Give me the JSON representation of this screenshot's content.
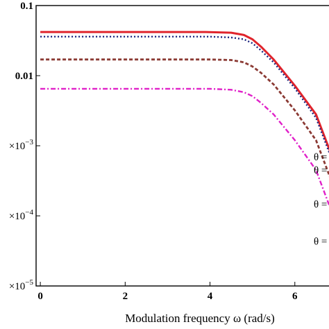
{
  "chart_data": {
    "type": "line",
    "title": "",
    "xlabel": "Modulation frequency ω (rad/s)",
    "ylabel": "",
    "xlim": [
      -0.1,
      7.1
    ],
    "ylim_log10": [
      -5,
      -1
    ],
    "y_scale": "log",
    "grid": false,
    "x_ticks": [
      0,
      2,
      4,
      6
    ],
    "x_tick_labels": [
      "0",
      "2",
      "4",
      "6"
    ],
    "y_ticks": [
      {
        "value": 0.1,
        "label": "0.1"
      },
      {
        "value": 0.01,
        "label": "0.01"
      },
      {
        "value": 0.001,
        "label": "×10",
        "exp": "−3"
      },
      {
        "value": 0.0001,
        "label": "×10",
        "exp": "−4"
      },
      {
        "value": 1e-05,
        "label": "×10",
        "exp": "−5"
      }
    ],
    "series": [
      {
        "label": "θ =",
        "color": "#e0242c",
        "style": "solid",
        "x": [
          0,
          1,
          2,
          3,
          3.9,
          4.5,
          4.8,
          5.0,
          5.2,
          5.5,
          6.0,
          6.5,
          7.0
        ],
        "y": [
          0.042,
          0.042,
          0.042,
          0.042,
          0.042,
          0.041,
          0.038,
          0.033,
          0.026,
          0.017,
          0.0072,
          0.0028,
          0.00045
        ]
      },
      {
        "label": "θ =",
        "color": "#1a237e",
        "style": "dotted",
        "x": [
          0,
          1,
          2,
          3,
          4,
          4.5,
          4.8,
          5.0,
          5.2,
          5.5,
          6.0,
          6.5,
          7.0
        ],
        "y": [
          0.036,
          0.036,
          0.036,
          0.036,
          0.036,
          0.035,
          0.033,
          0.029,
          0.023,
          0.0155,
          0.0066,
          0.0025,
          0.0004
        ]
      },
      {
        "label": "θ =",
        "color": "#8b3a34",
        "style": "dashed",
        "x": [
          0,
          1,
          2,
          3,
          4,
          4.5,
          4.8,
          5.0,
          5.2,
          5.5,
          6.0,
          6.5,
          7.0
        ],
        "y": [
          0.017,
          0.017,
          0.017,
          0.017,
          0.017,
          0.0167,
          0.0155,
          0.0135,
          0.011,
          0.0075,
          0.0032,
          0.0012,
          0.00019
        ]
      },
      {
        "label": "θ =",
        "color": "#e020c8",
        "style": "dashdot",
        "x": [
          0,
          1,
          2,
          3,
          4,
          4.5,
          4.8,
          5.0,
          5.2,
          5.5,
          6.0,
          6.5,
          7.0
        ],
        "y": [
          0.0065,
          0.0065,
          0.0065,
          0.0065,
          0.0065,
          0.0063,
          0.0058,
          0.0051,
          0.0041,
          0.0028,
          0.0012,
          0.00045,
          7e-05
        ]
      }
    ]
  }
}
